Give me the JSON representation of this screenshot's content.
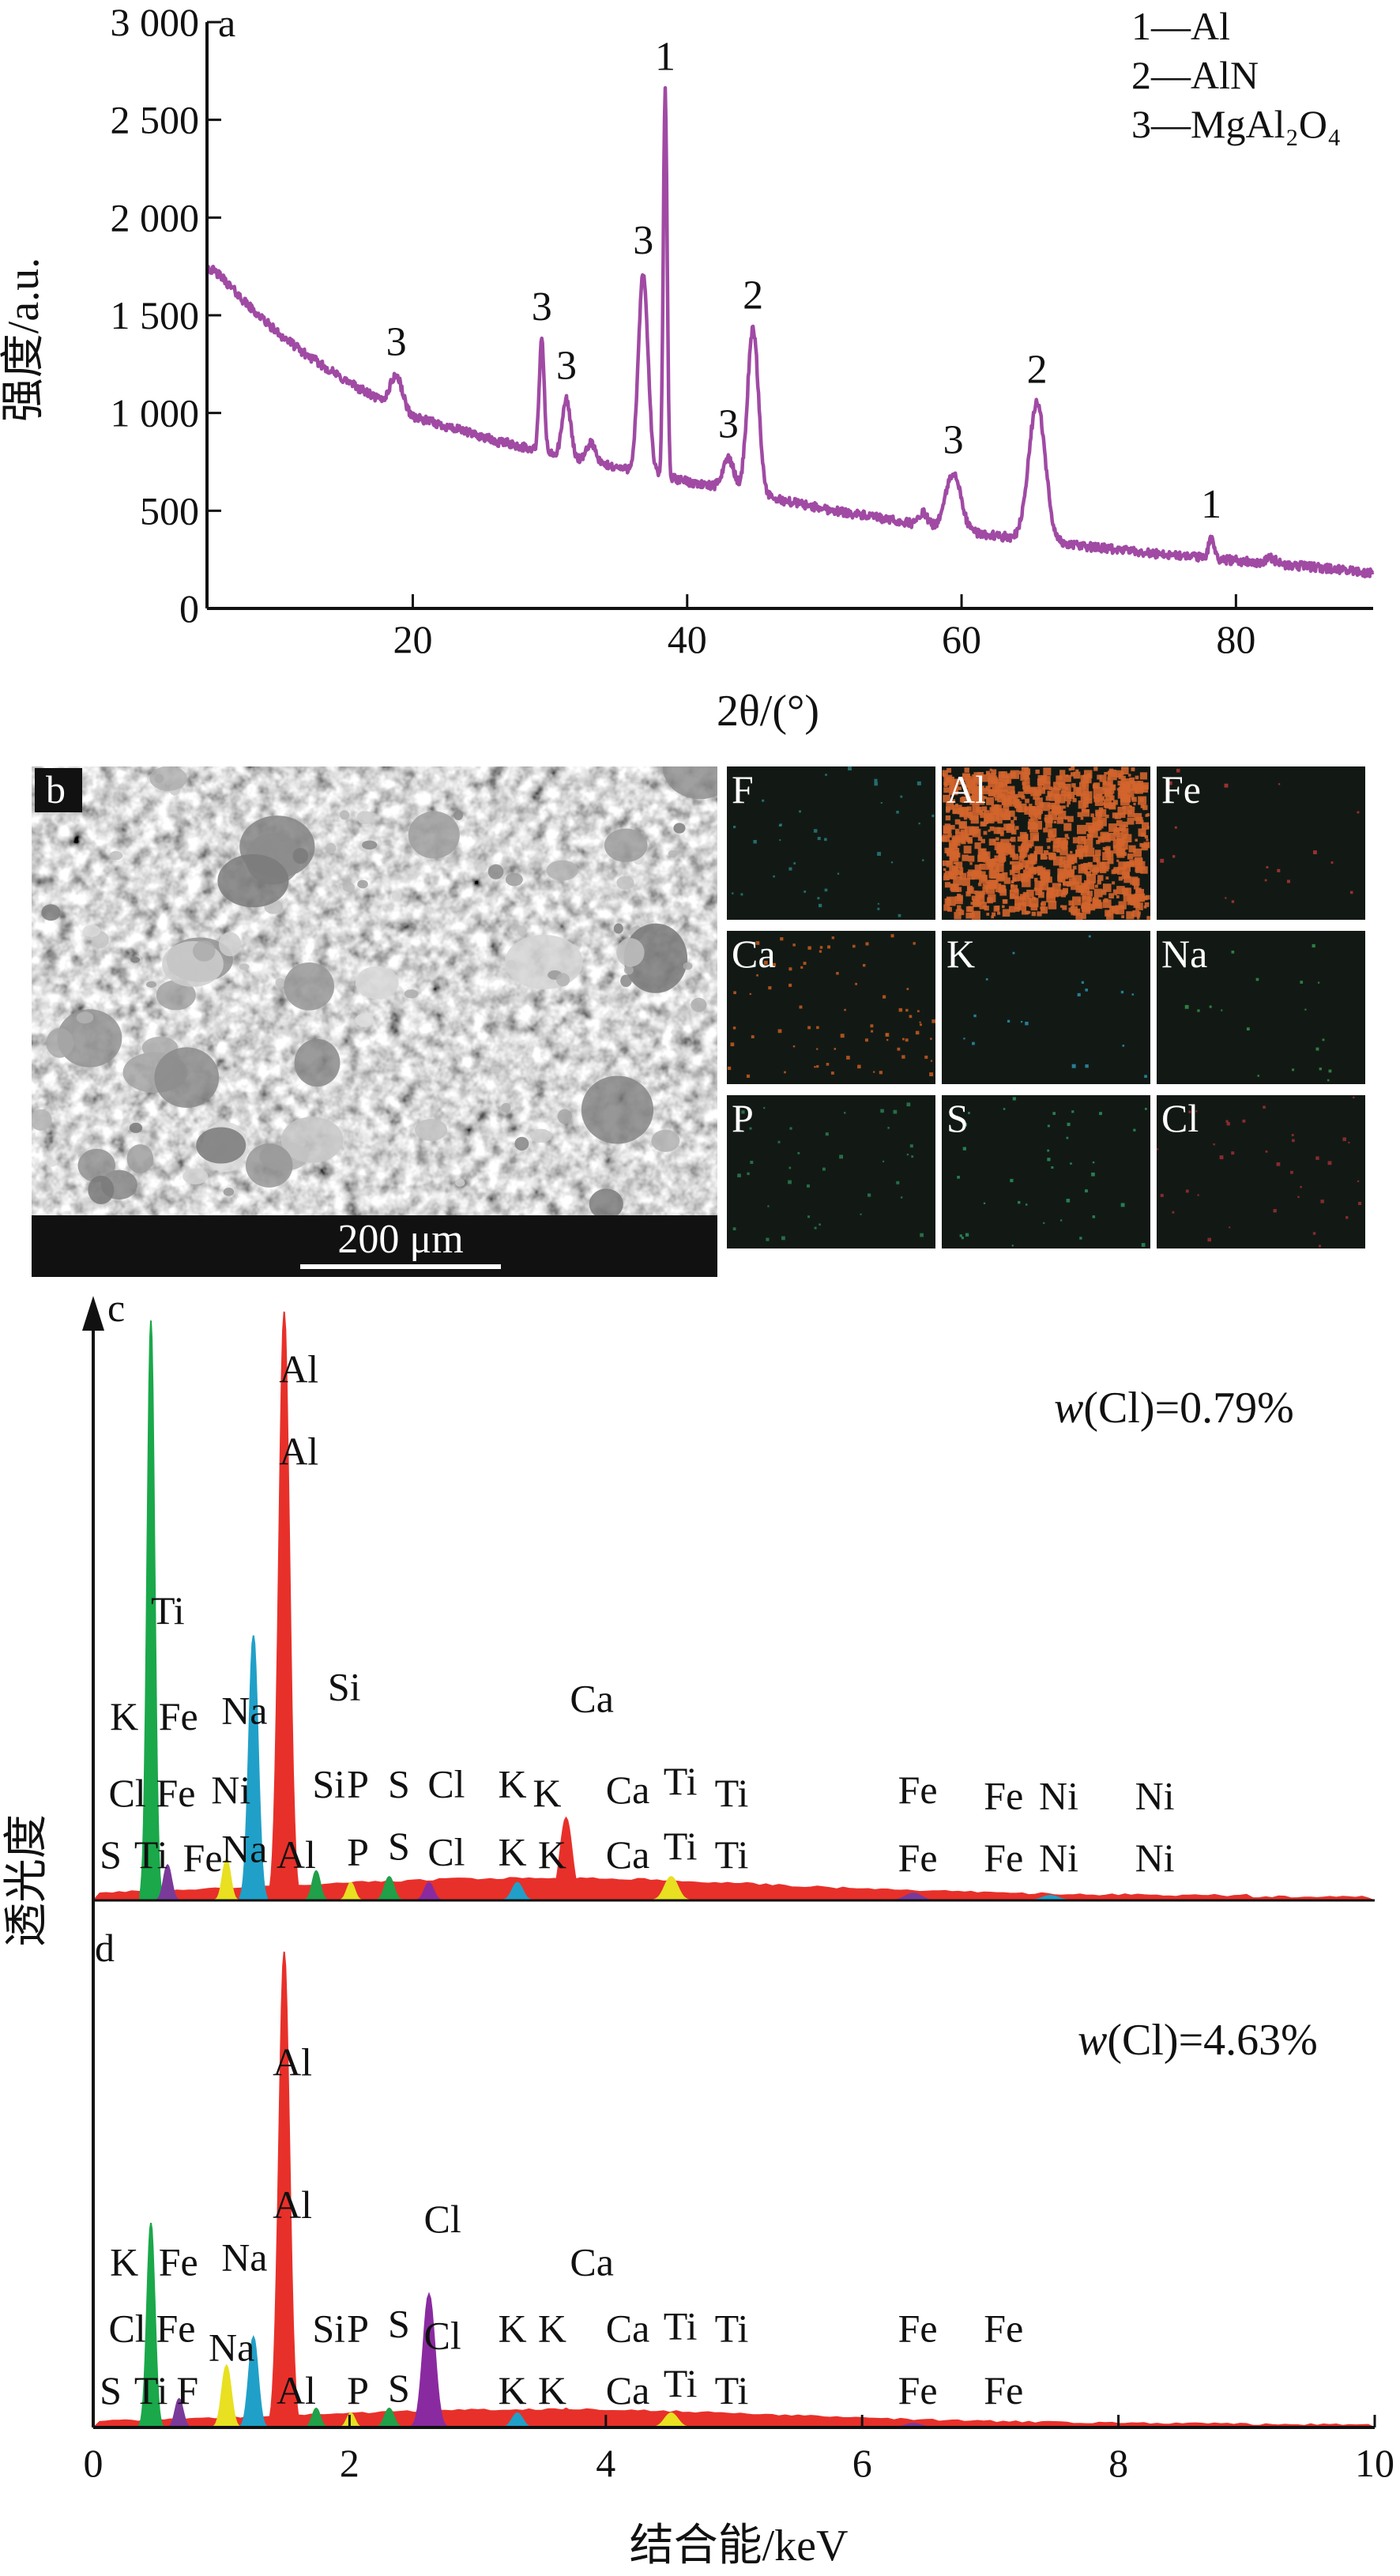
{
  "chart_data": [
    {
      "id": "a",
      "type": "line",
      "panel_label": "a",
      "xlabel": "2θ/(°)",
      "ylabel": "强度/a.u.",
      "xlim": [
        5,
        90
      ],
      "ylim": [
        0,
        3000
      ],
      "x_ticks": [
        20,
        40,
        60,
        80
      ],
      "y_ticks": [
        0,
        500,
        1000,
        1500,
        2000,
        2500,
        3000
      ],
      "y_tick_labels": [
        "0",
        "500",
        "1 000",
        "1 500",
        "2 000",
        "2 500",
        "3 000"
      ],
      "line_color": "#a04aa4",
      "legend": [
        "1—Al",
        "2—AlN",
        "3—MgAl₂O₄"
      ],
      "background": [
        [
          5,
          1750
        ],
        [
          6,
          1700
        ],
        [
          8,
          1550
        ],
        [
          10,
          1420
        ],
        [
          12,
          1310
        ],
        [
          15,
          1170
        ],
        [
          18,
          1050
        ],
        [
          20,
          980
        ],
        [
          25,
          880
        ],
        [
          30,
          790
        ],
        [
          35,
          720
        ],
        [
          40,
          650
        ],
        [
          45,
          580
        ],
        [
          50,
          510
        ],
        [
          55,
          450
        ],
        [
          60,
          395
        ],
        [
          65,
          350
        ],
        [
          70,
          310
        ],
        [
          75,
          275
        ],
        [
          80,
          245
        ],
        [
          85,
          215
        ],
        [
          90,
          180
        ]
      ],
      "peaks": [
        {
          "x": 18.8,
          "y": 1190,
          "w": 0.45,
          "label": "3"
        },
        {
          "x": 26.0,
          "y": 850,
          "w": 0.25,
          "label": ""
        },
        {
          "x": 29.4,
          "y": 1370,
          "w": 0.18,
          "label": "3"
        },
        {
          "x": 31.2,
          "y": 1070,
          "w": 0.3,
          "label": "3"
        },
        {
          "x": 33.0,
          "y": 850,
          "w": 0.3,
          "label": ""
        },
        {
          "x": 36.8,
          "y": 1710,
          "w": 0.35,
          "label": "3"
        },
        {
          "x": 38.4,
          "y": 2650,
          "w": 0.14,
          "label": "1"
        },
        {
          "x": 43.0,
          "y": 770,
          "w": 0.4,
          "label": "3"
        },
        {
          "x": 44.8,
          "y": 1430,
          "w": 0.4,
          "label": "2"
        },
        {
          "x": 48.0,
          "y": 540,
          "w": 0.4,
          "label": ""
        },
        {
          "x": 57.2,
          "y": 490,
          "w": 0.3,
          "label": ""
        },
        {
          "x": 59.4,
          "y": 690,
          "w": 0.55,
          "label": "3"
        },
        {
          "x": 65.5,
          "y": 1050,
          "w": 0.6,
          "label": "2"
        },
        {
          "x": 78.2,
          "y": 360,
          "w": 0.2,
          "label": "1"
        },
        {
          "x": 82.5,
          "y": 260,
          "w": 0.35,
          "label": ""
        }
      ]
    },
    {
      "id": "b",
      "type": "image",
      "panel_label": "b",
      "scale_bar": "200 μm",
      "maps": [
        {
          "element": "F",
          "color": "#2a8a8a",
          "density": 0.02
        },
        {
          "element": "Al",
          "color": "#d2642c",
          "density": 0.55
        },
        {
          "element": "Fe",
          "color": "#c83a3a",
          "density": 0.01
        },
        {
          "element": "Ca",
          "color": "#e06420",
          "density": 0.04
        },
        {
          "element": "K",
          "color": "#2fa0c0",
          "density": 0.01
        },
        {
          "element": "Na",
          "color": "#3aa050",
          "density": 0.01
        },
        {
          "element": "P",
          "color": "#2f8a5a",
          "density": 0.02
        },
        {
          "element": "S",
          "color": "#2fa06a",
          "density": 0.02
        },
        {
          "element": "Cl",
          "color": "#b0303a",
          "density": 0.02
        }
      ]
    },
    {
      "id": "c",
      "type": "area",
      "panel_label": "c",
      "annotation": "w(Cl)=0.79%",
      "xlim": [
        0,
        10
      ],
      "ylim": [
        0,
        1
      ],
      "peaks": [
        {
          "x": 0.45,
          "h": 0.985,
          "w": 0.028,
          "color": "#1aa84a"
        },
        {
          "x": 0.58,
          "h": 0.06,
          "w": 0.03,
          "color": "#7a3a9a"
        },
        {
          "x": 1.04,
          "h": 0.07,
          "w": 0.03,
          "color": "#e8e020"
        },
        {
          "x": 1.25,
          "h": 0.45,
          "w": 0.035,
          "color": "#20a0c8"
        },
        {
          "x": 1.49,
          "h": 1.0,
          "w": 0.04,
          "color": "#e8302a"
        },
        {
          "x": 1.74,
          "h": 0.05,
          "w": 0.03,
          "color": "#20a048"
        },
        {
          "x": 2.01,
          "h": 0.03,
          "w": 0.03,
          "color": "#e8e020"
        },
        {
          "x": 2.31,
          "h": 0.04,
          "w": 0.035,
          "color": "#20a048"
        },
        {
          "x": 2.62,
          "h": 0.03,
          "w": 0.035,
          "color": "#8a2aa0"
        },
        {
          "x": 3.31,
          "h": 0.03,
          "w": 0.04,
          "color": "#20a0c8"
        },
        {
          "x": 3.69,
          "h": 0.14,
          "w": 0.045,
          "color": "#e8302a"
        },
        {
          "x": 4.51,
          "h": 0.04,
          "w": 0.05,
          "color": "#e8e020"
        },
        {
          "x": 6.4,
          "h": 0.012,
          "w": 0.06,
          "color": "#7a3a9a"
        },
        {
          "x": 7.47,
          "h": 0.008,
          "w": 0.06,
          "color": "#20a0c8"
        }
      ],
      "labels": [
        {
          "text": "Al",
          "x": 1.45,
          "y": 0.88
        },
        {
          "text": "Al",
          "x": 1.45,
          "y": 0.74
        },
        {
          "text": "Ti",
          "x": 0.45,
          "y": 0.47
        },
        {
          "text": "Si",
          "x": 1.83,
          "y": 0.34
        },
        {
          "text": "K",
          "x": 0.13,
          "y": 0.29
        },
        {
          "text": "Fe",
          "x": 0.51,
          "y": 0.29
        },
        {
          "text": "Na",
          "x": 1.0,
          "y": 0.3
        },
        {
          "text": "Ca",
          "x": 3.72,
          "y": 0.32
        },
        {
          "text": "Cl",
          "x": 0.12,
          "y": 0.16
        },
        {
          "text": "Fe",
          "x": 0.49,
          "y": 0.16
        },
        {
          "text": "Ni",
          "x": 0.92,
          "y": 0.165
        },
        {
          "text": "Si",
          "x": 1.71,
          "y": 0.175
        },
        {
          "text": "P",
          "x": 1.98,
          "y": 0.175
        },
        {
          "text": "S",
          "x": 2.3,
          "y": 0.175
        },
        {
          "text": "Cl",
          "x": 2.61,
          "y": 0.175
        },
        {
          "text": "K",
          "x": 3.16,
          "y": 0.175
        },
        {
          "text": "K",
          "x": 3.43,
          "y": 0.16
        },
        {
          "text": "Ca",
          "x": 4.0,
          "y": 0.165
        },
        {
          "text": "Ti",
          "x": 4.45,
          "y": 0.18
        },
        {
          "text": "Ti",
          "x": 4.85,
          "y": 0.16
        },
        {
          "text": "Fe",
          "x": 6.28,
          "y": 0.165
        },
        {
          "text": "Fe",
          "x": 6.95,
          "y": 0.155
        },
        {
          "text": "Ni",
          "x": 7.38,
          "y": 0.155
        },
        {
          "text": "Ni",
          "x": 8.13,
          "y": 0.155
        },
        {
          "text": "S",
          "x": 0.05,
          "y": 0.055
        },
        {
          "text": "Ti",
          "x": 0.32,
          "y": 0.055
        },
        {
          "text": "Fe",
          "x": 0.7,
          "y": 0.05
        },
        {
          "text": "Na",
          "x": 1.0,
          "y": 0.065
        },
        {
          "text": "Al",
          "x": 1.43,
          "y": 0.055
        },
        {
          "text": "P",
          "x": 1.98,
          "y": 0.06
        },
        {
          "text": "S",
          "x": 2.3,
          "y": 0.07
        },
        {
          "text": "Cl",
          "x": 2.61,
          "y": 0.06
        },
        {
          "text": "K",
          "x": 3.16,
          "y": 0.06
        },
        {
          "text": "K",
          "x": 3.47,
          "y": 0.055
        },
        {
          "text": "Ca",
          "x": 4.0,
          "y": 0.055
        },
        {
          "text": "Ti",
          "x": 4.45,
          "y": 0.07
        },
        {
          "text": "Ti",
          "x": 4.85,
          "y": 0.055
        },
        {
          "text": "Fe",
          "x": 6.28,
          "y": 0.05
        },
        {
          "text": "Fe",
          "x": 6.95,
          "y": 0.05
        },
        {
          "text": "Ni",
          "x": 7.38,
          "y": 0.05
        },
        {
          "text": "Ni",
          "x": 8.13,
          "y": 0.05
        }
      ]
    },
    {
      "id": "d",
      "type": "area",
      "panel_label": "d",
      "annotation": "w(Cl)=4.63%",
      "xlabel": "结合能/keV",
      "shared_ylabel": "透光度",
      "xlim": [
        0,
        10
      ],
      "ylim": [
        0,
        1
      ],
      "x_ticks": [
        0,
        2,
        4,
        6,
        8,
        10
      ],
      "peaks": [
        {
          "x": 0.45,
          "h": 0.43,
          "w": 0.03,
          "color": "#1aa84a"
        },
        {
          "x": 0.67,
          "h": 0.06,
          "w": 0.03,
          "color": "#7a3a9a"
        },
        {
          "x": 1.04,
          "h": 0.13,
          "w": 0.035,
          "color": "#e8e020"
        },
        {
          "x": 1.25,
          "h": 0.19,
          "w": 0.035,
          "color": "#20a0c8"
        },
        {
          "x": 1.49,
          "h": 1.0,
          "w": 0.04,
          "color": "#e8302a"
        },
        {
          "x": 1.74,
          "h": 0.04,
          "w": 0.03,
          "color": "#20a048"
        },
        {
          "x": 2.01,
          "h": 0.03,
          "w": 0.03,
          "color": "#e8e020"
        },
        {
          "x": 2.31,
          "h": 0.04,
          "w": 0.035,
          "color": "#20a048"
        },
        {
          "x": 2.62,
          "h": 0.28,
          "w": 0.045,
          "color": "#8a2aa0"
        },
        {
          "x": 3.31,
          "h": 0.03,
          "w": 0.04,
          "color": "#20a0c8"
        },
        {
          "x": 3.69,
          "h": 0.04,
          "w": 0.045,
          "color": "#e8302a"
        },
        {
          "x": 4.51,
          "h": 0.03,
          "w": 0.05,
          "color": "#e8e020"
        },
        {
          "x": 6.4,
          "h": 0.008,
          "w": 0.06,
          "color": "#7a3a9a"
        }
      ],
      "labels": [
        {
          "text": "Al",
          "x": 1.4,
          "y": 0.74
        },
        {
          "text": "Al",
          "x": 1.4,
          "y": 0.44
        },
        {
          "text": "K",
          "x": 0.13,
          "y": 0.32
        },
        {
          "text": "Fe",
          "x": 0.51,
          "y": 0.32
        },
        {
          "text": "Na",
          "x": 1.0,
          "y": 0.33
        },
        {
          "text": "Cl",
          "x": 2.58,
          "y": 0.41
        },
        {
          "text": "Ca",
          "x": 3.72,
          "y": 0.32
        },
        {
          "text": "Cl",
          "x": 0.12,
          "y": 0.18
        },
        {
          "text": "Fe",
          "x": 0.49,
          "y": 0.18
        },
        {
          "text": "Na",
          "x": 0.9,
          "y": 0.14
        },
        {
          "text": "Si",
          "x": 1.71,
          "y": 0.18
        },
        {
          "text": "P",
          "x": 1.98,
          "y": 0.18
        },
        {
          "text": "S",
          "x": 2.3,
          "y": 0.19
        },
        {
          "text": "Cl",
          "x": 2.58,
          "y": 0.165
        },
        {
          "text": "K",
          "x": 3.16,
          "y": 0.18
        },
        {
          "text": "K",
          "x": 3.47,
          "y": 0.18
        },
        {
          "text": "Ca",
          "x": 4.0,
          "y": 0.18
        },
        {
          "text": "Ti",
          "x": 4.45,
          "y": 0.185
        },
        {
          "text": "Ti",
          "x": 4.85,
          "y": 0.18
        },
        {
          "text": "Fe",
          "x": 6.28,
          "y": 0.18
        },
        {
          "text": "Fe",
          "x": 6.95,
          "y": 0.18
        },
        {
          "text": "S",
          "x": 0.05,
          "y": 0.05
        },
        {
          "text": "Ti",
          "x": 0.32,
          "y": 0.05
        },
        {
          "text": "F",
          "x": 0.65,
          "y": 0.05
        },
        {
          "text": "Al",
          "x": 1.43,
          "y": 0.05
        },
        {
          "text": "P",
          "x": 1.98,
          "y": 0.05
        },
        {
          "text": "S",
          "x": 2.3,
          "y": 0.055
        },
        {
          "text": "K",
          "x": 3.16,
          "y": 0.05
        },
        {
          "text": "K",
          "x": 3.47,
          "y": 0.05
        },
        {
          "text": "Ca",
          "x": 4.0,
          "y": 0.05
        },
        {
          "text": "Ti",
          "x": 4.45,
          "y": 0.065
        },
        {
          "text": "Ti",
          "x": 4.85,
          "y": 0.05
        },
        {
          "text": "Fe",
          "x": 6.28,
          "y": 0.05
        },
        {
          "text": "Fe",
          "x": 6.95,
          "y": 0.05
        }
      ]
    }
  ]
}
